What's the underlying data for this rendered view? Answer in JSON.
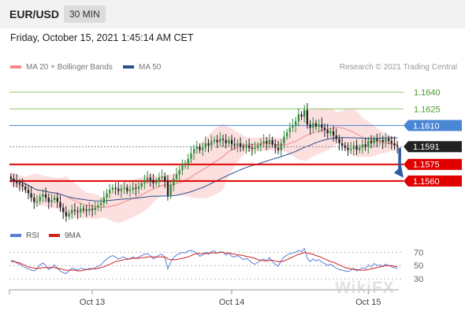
{
  "header": {
    "pair": "EUR/USD",
    "timeframe": "30 MIN"
  },
  "datetime": "Friday, October 15, 2021 1:45:14 AM CET",
  "legend": {
    "ma20": {
      "label": "MA 20 + Bollinger Bands",
      "color": "#f08a8a"
    },
    "ma50": {
      "label": "MA 50",
      "color": "#2b4f8e"
    }
  },
  "credit": "Research © 2021 Trading Central",
  "rsi_legend": {
    "rsi": {
      "label": "RSI",
      "color": "#5b7fd6"
    },
    "ma9": {
      "label": "9MA",
      "color": "#d02020"
    }
  },
  "watermark": "WikiFX",
  "colors": {
    "up": "#2e8b3a",
    "down": "#222222",
    "band": "#fcd9d9",
    "resistance": "#8cc66b",
    "pivot": "#4a86d6",
    "support": "#e00000",
    "current": "#222222"
  },
  "chart_data": [
    {
      "type": "candlestick",
      "title": "",
      "price_range": [
        1.1523,
        1.1655
      ],
      "x_ticks": [
        {
          "label": "Oct 13",
          "index": 28
        },
        {
          "label": "Oct 14",
          "index": 76
        },
        {
          "label": "Oct 15",
          "index": 123
        }
      ],
      "levels": [
        {
          "value": 1.164,
          "label": "1.1640",
          "kind": "resistance"
        },
        {
          "value": 1.1625,
          "label": "1.1625",
          "kind": "resistance"
        },
        {
          "value": 1.161,
          "label": "1.1610",
          "kind": "pivot"
        },
        {
          "value": 1.1591,
          "label": "1.1591",
          "kind": "current"
        },
        {
          "value": 1.1575,
          "label": "1.1575",
          "kind": "support"
        },
        {
          "value": 1.156,
          "label": "1.1560",
          "kind": "support"
        }
      ],
      "forecast": {
        "from": 1.159,
        "to": 1.1563
      },
      "close": [
        1.1562,
        1.156,
        1.1558,
        1.1557,
        1.1555,
        1.1552,
        1.1549,
        1.1545,
        1.1541,
        1.1542,
        1.1546,
        1.1548,
        1.1545,
        1.1541,
        1.1543,
        1.1545,
        1.1541,
        1.1536,
        1.1532,
        1.1528,
        1.1531,
        1.1534,
        1.1533,
        1.1532,
        1.1535,
        1.1534,
        1.1533,
        1.1535,
        1.1534,
        1.1536,
        1.1538,
        1.154,
        1.1545,
        1.1549,
        1.1552,
        1.1554,
        1.1553,
        1.1551,
        1.1553,
        1.1554,
        1.1551,
        1.1552,
        1.1554,
        1.1553,
        1.1555,
        1.1558,
        1.1561,
        1.1563,
        1.1561,
        1.1558,
        1.156,
        1.1563,
        1.1564,
        1.156,
        1.1547,
        1.1556,
        1.1562,
        1.1566,
        1.157,
        1.1574,
        1.1576,
        1.158,
        1.1585,
        1.1589,
        1.1591,
        1.1588,
        1.159,
        1.1594,
        1.1592,
        1.1596,
        1.1597,
        1.1595,
        1.1598,
        1.1597,
        1.1594,
        1.1597,
        1.1593,
        1.1592,
        1.1594,
        1.1591,
        1.159,
        1.1592,
        1.159,
        1.1589,
        1.159,
        1.1592,
        1.1594,
        1.1596,
        1.1594,
        1.1597,
        1.1593,
        1.159,
        1.1588,
        1.1594,
        1.16,
        1.1604,
        1.1608,
        1.161,
        1.1614,
        1.162,
        1.1618,
        1.1624,
        1.1611,
        1.1608,
        1.1612,
        1.1609,
        1.1611,
        1.1608,
        1.1606,
        1.1603,
        1.1605,
        1.1601,
        1.1598,
        1.1594,
        1.1592,
        1.159,
        1.1588,
        1.1589,
        1.1592,
        1.1588,
        1.159,
        1.1593,
        1.1591,
        1.1596,
        1.1594,
        1.1598,
        1.1596,
        1.1597,
        1.1595,
        1.1598,
        1.1596,
        1.1594,
        1.1592,
        1.1591
      ]
    },
    {
      "type": "line",
      "title": "RSI",
      "ylim": [
        17,
        80
      ],
      "yticks": [
        70,
        50,
        30
      ],
      "series": [
        {
          "name": "RSI",
          "values": [
            58,
            57,
            54,
            52,
            49,
            47,
            45,
            43,
            42,
            45,
            51,
            54,
            50,
            44,
            47,
            51,
            46,
            42,
            39,
            38,
            42,
            46,
            45,
            43,
            46,
            45,
            44,
            46,
            45,
            47,
            49,
            51,
            56,
            60,
            63,
            65,
            63,
            60,
            62,
            63,
            59,
            60,
            63,
            61,
            63,
            65,
            67,
            68,
            65,
            60,
            63,
            66,
            67,
            62,
            45,
            55,
            62,
            66,
            68,
            70,
            69,
            72,
            73,
            71,
            69,
            64,
            66,
            70,
            67,
            71,
            72,
            69,
            71,
            70,
            66,
            69,
            64,
            63,
            65,
            62,
            59,
            61,
            58,
            54,
            52,
            55,
            58,
            60,
            57,
            62,
            56,
            52,
            49,
            57,
            63,
            66,
            68,
            69,
            70,
            73,
            71,
            76,
            61,
            56,
            60,
            57,
            59,
            55,
            53,
            50,
            52,
            49,
            46,
            44,
            43,
            42,
            41,
            43,
            46,
            42,
            44,
            47,
            45,
            51,
            48,
            53,
            50,
            51,
            49,
            52,
            50,
            48,
            47,
            45
          ]
        },
        {
          "name": "9MA",
          "values": [
            56,
            56,
            55,
            54,
            52,
            50,
            48,
            47,
            46,
            46,
            46,
            47,
            47,
            47,
            47,
            47,
            46,
            45,
            44,
            43,
            43,
            43,
            43,
            42,
            42,
            43,
            44,
            44,
            45,
            45,
            46,
            47,
            48,
            50,
            52,
            54,
            56,
            57,
            58,
            59,
            60,
            60,
            61,
            61,
            61,
            62,
            62,
            63,
            63,
            63,
            63,
            63,
            63,
            63,
            60,
            59,
            59,
            59,
            60,
            61,
            62,
            63,
            65,
            67,
            68,
            68,
            68,
            68,
            69,
            69,
            69,
            69,
            70,
            70,
            69,
            69,
            68,
            67,
            66,
            66,
            65,
            64,
            63,
            62,
            61,
            59,
            58,
            57,
            57,
            58,
            58,
            57,
            56,
            56,
            57,
            59,
            61,
            63,
            65,
            67,
            68,
            70,
            69,
            68,
            67,
            65,
            64,
            62,
            60,
            58,
            56,
            55,
            53,
            51,
            49,
            47,
            46,
            45,
            44,
            44,
            43,
            43,
            43,
            44,
            45,
            46,
            47,
            48,
            49,
            50,
            50,
            50,
            49,
            48
          ]
        }
      ]
    }
  ]
}
